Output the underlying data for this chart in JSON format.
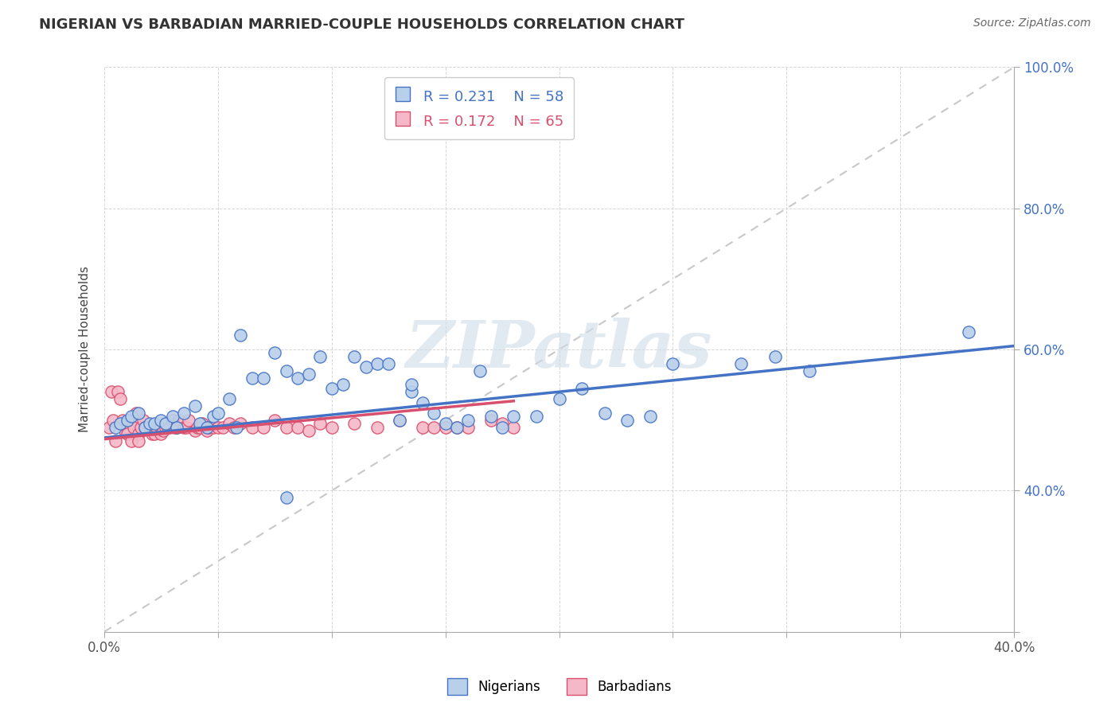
{
  "title": "NIGERIAN VS BARBADIAN MARRIED-COUPLE HOUSEHOLDS CORRELATION CHART",
  "source": "Source: ZipAtlas.com",
  "ylabel": "Married-couple Households",
  "watermark": "ZIPatlas",
  "legend_r_nigerian": "R = 0.231",
  "legend_n_nigerian": "N = 58",
  "legend_r_barbadian": "R = 0.172",
  "legend_n_barbadian": "N = 65",
  "nigerian_color": "#b8d0ea",
  "barbadian_color": "#f5b8c8",
  "nigerian_line_color": "#4472c4",
  "barbadian_line_color": "#d94f6e",
  "diagonal_color": "#c8c8c8",
  "xlim": [
    0.0,
    0.4
  ],
  "ylim": [
    0.2,
    1.0
  ],
  "xtick_positions": [
    0.0,
    0.05,
    0.1,
    0.15,
    0.2,
    0.25,
    0.3,
    0.35,
    0.4
  ],
  "xtick_labels": [
    "0.0%",
    "",
    "",
    "",
    "",
    "",
    "",
    "",
    "40.0%"
  ],
  "ytick_positions": [
    0.2,
    0.4,
    0.6,
    0.8,
    1.0
  ],
  "ytick_labels": [
    "",
    "40.0%",
    "60.0%",
    "80.0%",
    "100.0%"
  ],
  "nigerian_x": [
    0.005,
    0.007,
    0.01,
    0.012,
    0.015,
    0.018,
    0.02,
    0.022,
    0.025,
    0.027,
    0.03,
    0.032,
    0.035,
    0.04,
    0.042,
    0.045,
    0.048,
    0.05,
    0.055,
    0.058,
    0.06,
    0.065,
    0.07,
    0.075,
    0.08,
    0.085,
    0.09,
    0.095,
    0.1,
    0.105,
    0.11,
    0.115,
    0.12,
    0.125,
    0.13,
    0.135,
    0.14,
    0.145,
    0.15,
    0.155,
    0.16,
    0.17,
    0.175,
    0.18,
    0.19,
    0.2,
    0.21,
    0.22,
    0.23,
    0.24,
    0.135,
    0.165,
    0.25,
    0.28,
    0.295,
    0.31,
    0.38,
    0.08
  ],
  "nigerian_y": [
    0.49,
    0.495,
    0.5,
    0.505,
    0.51,
    0.49,
    0.495,
    0.495,
    0.5,
    0.495,
    0.505,
    0.49,
    0.51,
    0.52,
    0.495,
    0.49,
    0.505,
    0.51,
    0.53,
    0.49,
    0.62,
    0.56,
    0.56,
    0.595,
    0.57,
    0.56,
    0.565,
    0.59,
    0.545,
    0.55,
    0.59,
    0.575,
    0.58,
    0.58,
    0.5,
    0.54,
    0.525,
    0.51,
    0.495,
    0.49,
    0.5,
    0.505,
    0.49,
    0.505,
    0.505,
    0.53,
    0.545,
    0.51,
    0.5,
    0.505,
    0.55,
    0.57,
    0.58,
    0.58,
    0.59,
    0.57,
    0.625,
    0.39
  ],
  "barbadian_x": [
    0.002,
    0.003,
    0.004,
    0.005,
    0.006,
    0.007,
    0.008,
    0.009,
    0.01,
    0.01,
    0.011,
    0.012,
    0.013,
    0.014,
    0.015,
    0.015,
    0.016,
    0.017,
    0.018,
    0.02,
    0.021,
    0.022,
    0.023,
    0.025,
    0.026,
    0.027,
    0.028,
    0.03,
    0.031,
    0.032,
    0.033,
    0.035,
    0.036,
    0.037,
    0.04,
    0.041,
    0.042,
    0.043,
    0.045,
    0.046,
    0.048,
    0.05,
    0.052,
    0.055,
    0.057,
    0.06,
    0.065,
    0.07,
    0.075,
    0.08,
    0.085,
    0.09,
    0.095,
    0.1,
    0.11,
    0.12,
    0.13,
    0.14,
    0.145,
    0.15,
    0.155,
    0.16,
    0.17,
    0.175,
    0.18
  ],
  "barbadian_y": [
    0.49,
    0.54,
    0.5,
    0.47,
    0.54,
    0.53,
    0.5,
    0.485,
    0.49,
    0.48,
    0.5,
    0.47,
    0.49,
    0.51,
    0.48,
    0.47,
    0.49,
    0.5,
    0.49,
    0.49,
    0.48,
    0.48,
    0.49,
    0.48,
    0.485,
    0.49,
    0.49,
    0.5,
    0.49,
    0.49,
    0.5,
    0.49,
    0.49,
    0.5,
    0.485,
    0.49,
    0.49,
    0.495,
    0.485,
    0.49,
    0.49,
    0.49,
    0.49,
    0.495,
    0.49,
    0.495,
    0.49,
    0.49,
    0.5,
    0.49,
    0.49,
    0.485,
    0.495,
    0.49,
    0.495,
    0.49,
    0.5,
    0.49,
    0.49,
    0.49,
    0.49,
    0.49,
    0.5,
    0.495,
    0.49
  ]
}
